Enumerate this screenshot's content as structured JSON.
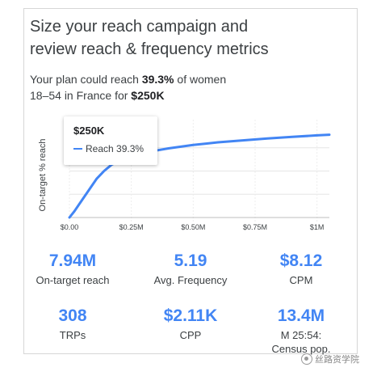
{
  "header": {
    "title_line1": "Size your reach campaign and",
    "title_line2": "review reach & frequency metrics"
  },
  "summary": {
    "prefix": "Your plan could reach ",
    "reach_pct": "39.3%",
    "middle": " of women",
    "line2_prefix": "18–54 in France for ",
    "budget": "$250K"
  },
  "tooltip": {
    "title": "$250K",
    "series_label": "Reach 39.3%"
  },
  "chart_data": {
    "type": "line",
    "ylabel": "On-target % reach",
    "xlabel": "",
    "x_tick_labels": [
      "$0.00",
      "$0.25M",
      "$0.50M",
      "$0.75M",
      "$1M"
    ],
    "x_ticks": [
      0,
      0.25,
      0.5,
      0.75,
      1.0
    ],
    "xlim": [
      0,
      1.05
    ],
    "ylim": [
      0,
      60
    ],
    "grid": true,
    "color": "#4285f4",
    "series": [
      {
        "x": [
          0,
          0.02,
          0.05,
          0.08,
          0.11,
          0.14,
          0.17,
          0.2,
          0.25,
          0.3,
          0.35,
          0.4,
          0.5,
          0.6,
          0.7,
          0.8,
          0.9,
          1.0,
          1.05
        ],
        "y": [
          0,
          4,
          11,
          18,
          25,
          30,
          34,
          36.5,
          39.3,
          41.5,
          43.2,
          44.6,
          46.8,
          48.5,
          49.8,
          51,
          52,
          53,
          53.4
        ]
      }
    ],
    "highlight": {
      "x": 0.25,
      "y": 39.3
    }
  },
  "metrics": [
    {
      "value": "7.94M",
      "label": "On-target reach"
    },
    {
      "value": "5.19",
      "label": "Avg. Frequency"
    },
    {
      "value": "$8.12",
      "label": "CPM"
    },
    {
      "value": "308",
      "label": "TRPs"
    },
    {
      "value": "$2.11K",
      "label": "CPP"
    },
    {
      "value": "13.4M",
      "label": "M 25:54:",
      "label2": "Census pop."
    }
  ],
  "watermark": {
    "text": "丝路资学院"
  }
}
